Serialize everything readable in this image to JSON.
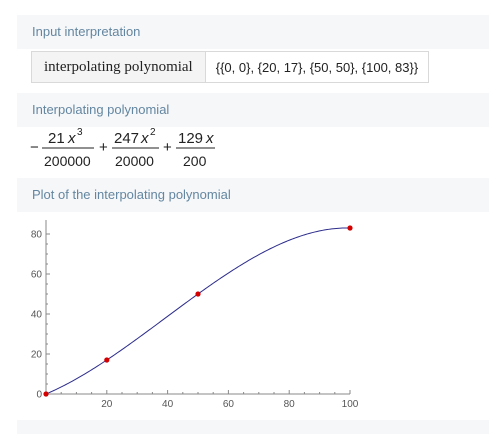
{
  "pods": {
    "input": {
      "title": "Input interpretation",
      "label": "interpolating polynomial",
      "value": "{{0, 0}, {20, 17}, {50, 50}, {100, 83}}"
    },
    "result": {
      "title": "Interpolating polynomial",
      "terms": [
        {
          "sign": "−",
          "num_coef": "21",
          "var": "x",
          "exp": "3",
          "den": "200000"
        },
        {
          "sign": "+",
          "num_coef": "247",
          "var": "x",
          "exp": "2",
          "den": "20000"
        },
        {
          "sign": "+",
          "num_coef": "129",
          "var": "x",
          "exp": "",
          "den": "200"
        }
      ]
    },
    "plot": {
      "title": "Plot of the interpolating polynomial"
    }
  },
  "chart_data": {
    "type": "line",
    "xlim": [
      0,
      100
    ],
    "ylim": [
      0,
      85
    ],
    "x_ticks": [
      0,
      20,
      40,
      60,
      80,
      100
    ],
    "y_ticks": [
      0,
      20,
      40,
      60,
      80
    ],
    "x_tick_labels": [
      "",
      "20",
      "40",
      "60",
      "80",
      "100"
    ],
    "y_tick_labels": [
      "0",
      "20",
      "40",
      "60",
      "80"
    ],
    "series": [
      {
        "values_note": "",
        "coefficients": {
          "a3": -0.000105,
          "a2": 0.01235,
          "a1": 0.645,
          "a0": 0
        },
        "x": [
          0,
          20,
          50,
          100
        ],
        "y": [
          0,
          17,
          50,
          83
        ]
      }
    ],
    "points": [
      {
        "x": 0,
        "y": 0
      },
      {
        "x": 20,
        "y": 17
      },
      {
        "x": 50,
        "y": 50
      },
      {
        "x": 100,
        "y": 83
      }
    ],
    "colors": {
      "curve": "#2c2c8c",
      "points": "#d40000",
      "axis": "#888888"
    },
    "grid": false
  }
}
